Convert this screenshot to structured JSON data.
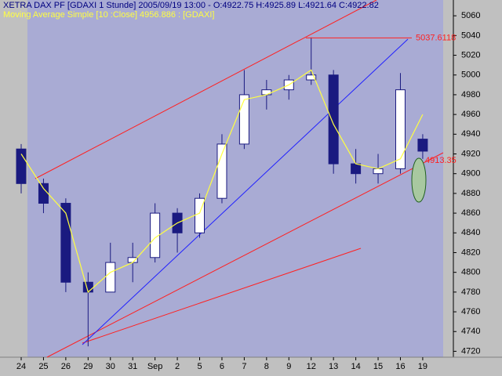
{
  "chart_data": {
    "type": "candlestick",
    "header": "XETRA DAX PF [GDAXI  1 Stunde] 2005/09/19 13:00 - O:4922.75 H:4925.89 L:4921.64 C:4922.82",
    "subheader": "Moving Average Simple [10 :Close] 4956.886 : [GDAXI]",
    "categories": [
      "24",
      "25",
      "26",
      "29",
      "30",
      "31",
      "Sep",
      "2",
      "5",
      "6",
      "7",
      "8",
      "9",
      "12",
      "13",
      "14",
      "15",
      "16",
      "19"
    ],
    "open": [
      4925,
      4890,
      4870,
      4790,
      4780,
      4810,
      4815,
      4860,
      4840,
      4875,
      4930,
      4980,
      4985,
      4995,
      5000,
      4910,
      4900,
      4905,
      4935
    ],
    "high": [
      4930,
      4895,
      4875,
      4800,
      4830,
      4830,
      4870,
      4865,
      4880,
      4940,
      5005,
      4995,
      5000,
      5038,
      5005,
      4925,
      4920,
      5002,
      4940
    ],
    "low": [
      4880,
      4860,
      4780,
      4725,
      4780,
      4790,
      4810,
      4820,
      4835,
      4870,
      4925,
      4965,
      4975,
      4990,
      4900,
      4890,
      4890,
      4900,
      4915
    ],
    "close": [
      4890,
      4870,
      4790,
      4780,
      4810,
      4815,
      4860,
      4840,
      4875,
      4930,
      4980,
      4985,
      4995,
      5000,
      4910,
      4900,
      4905,
      4985,
      4922.82
    ],
    "color": "#1a1a80",
    "moving_average": {
      "color": "#ffff40",
      "values": [
        4920,
        4885,
        4860,
        4780,
        4800,
        4810,
        4835,
        4850,
        4860,
        4920,
        4975,
        4980,
        4990,
        5005,
        4950,
        4910,
        4905,
        4915,
        4960
      ]
    },
    "annotations": [
      {
        "text": "5037.6118",
        "value": 5037.6118,
        "color": "#ff2020"
      },
      {
        "text": "4913.35",
        "value": 4913.35,
        "color": "#ff2020"
      }
    ],
    "ylim": [
      4714,
      5076
    ],
    "yticks": [
      4720,
      4740,
      4760,
      4780,
      4800,
      4820,
      4840,
      4860,
      4880,
      4900,
      4920,
      4940,
      4960,
      4980,
      5000,
      5020,
      5040,
      5060
    ],
    "grid": false
  }
}
